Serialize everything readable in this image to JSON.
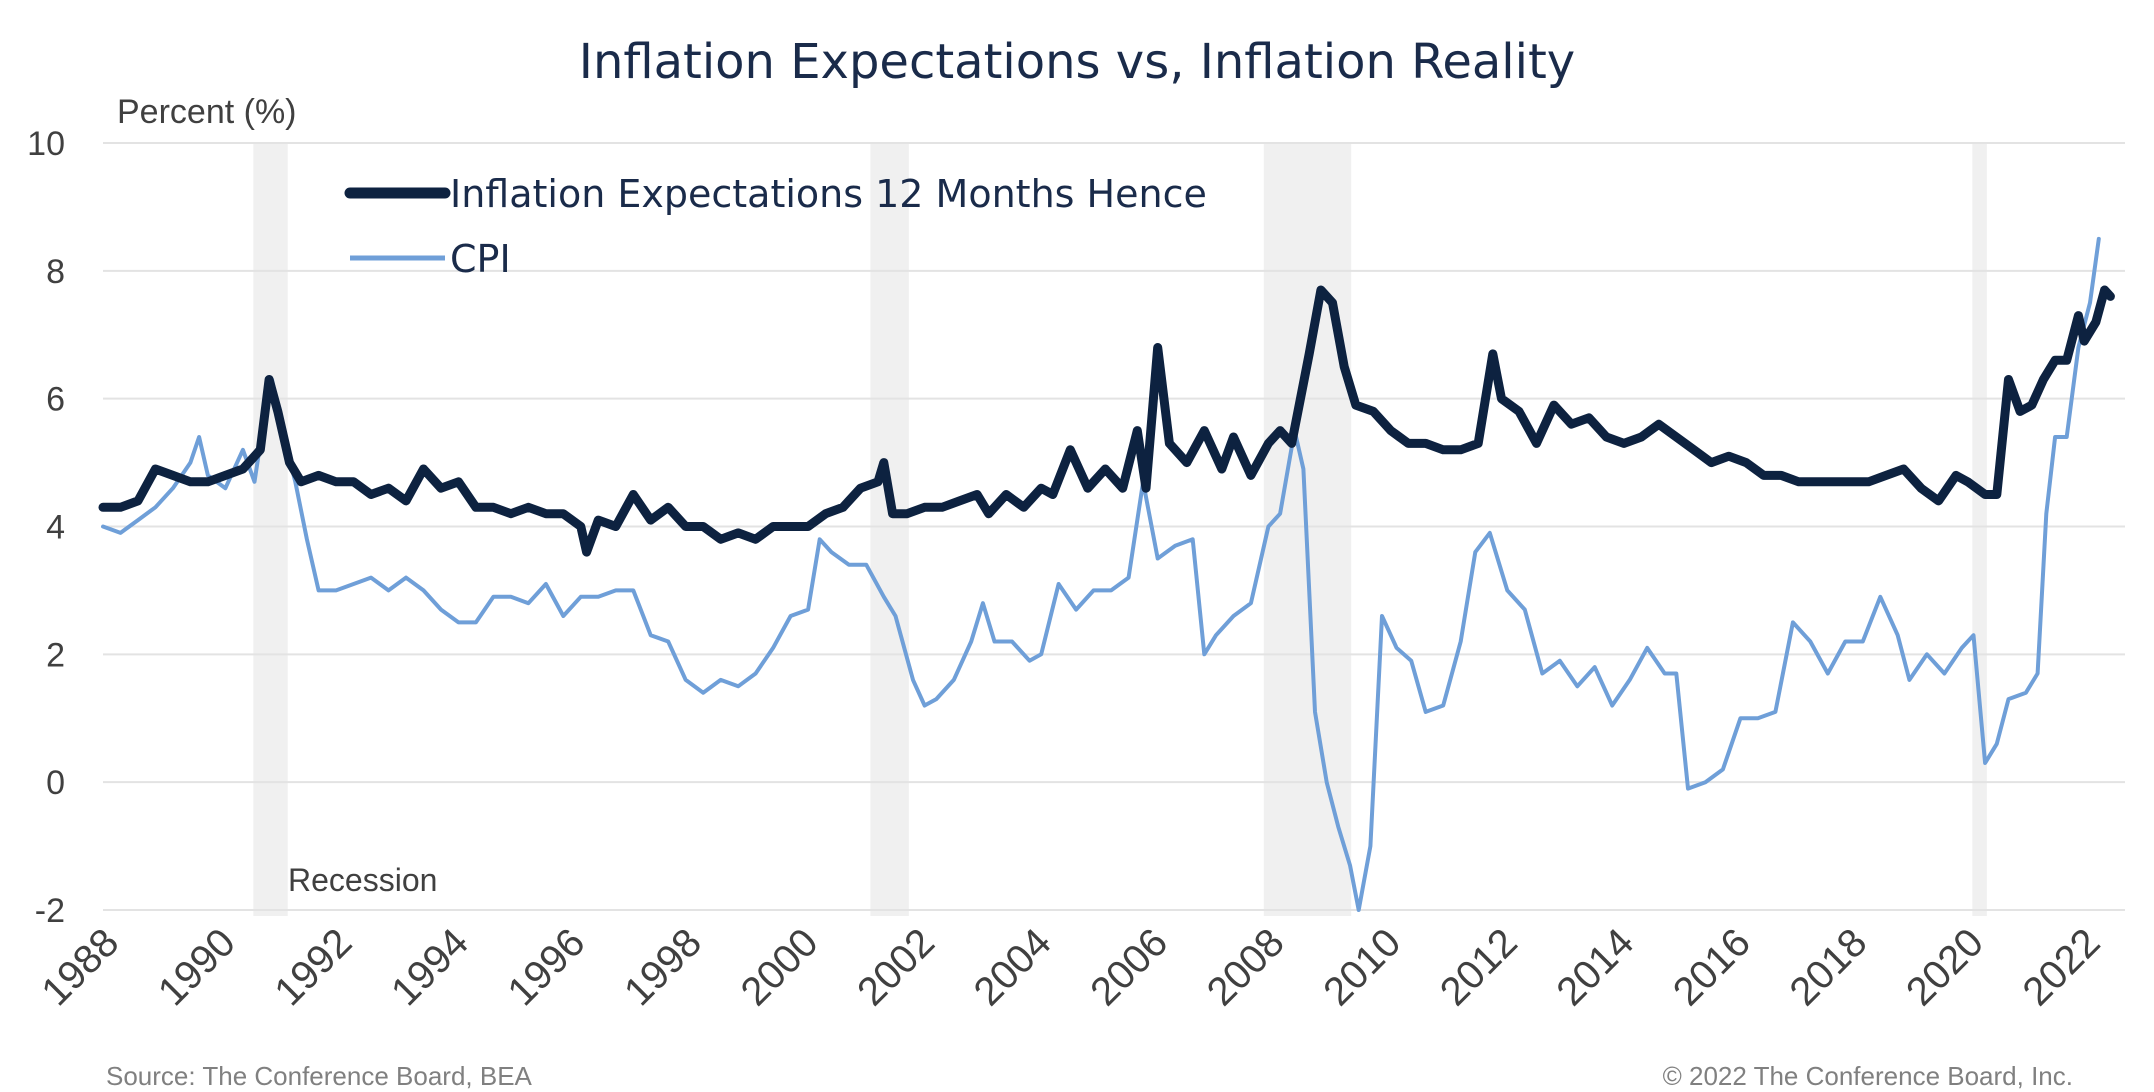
{
  "chart_data": {
    "type": "line",
    "title": "Inflation Expectations vs, Inflation Reality",
    "ylabel": "Percent (%)",
    "xlabel": "",
    "xlim": [
      1988,
      2022.7
    ],
    "ylim": [
      -2,
      10
    ],
    "yticks": [
      -2,
      0,
      2,
      4,
      6,
      8,
      10
    ],
    "xticks": [
      "1988",
      "1990",
      "1992",
      "1994",
      "1996",
      "1998",
      "2000",
      "2002",
      "2004",
      "2006",
      "2008",
      "2010",
      "2012",
      "2014",
      "2016",
      "2018",
      "2020",
      "2022"
    ],
    "grid": true,
    "legend_position": "top-left",
    "recession_label": "Recession",
    "recessions": [
      [
        1990.58,
        1991.17
      ],
      [
        2001.17,
        2001.83
      ],
      [
        2007.92,
        2009.42
      ],
      [
        2020.08,
        2020.33
      ]
    ],
    "series": [
      {
        "name": "Inflation Expectations 12 Months Hence",
        "color": "#0d2240",
        "points": [
          [
            1988.0,
            4.3
          ],
          [
            1988.3,
            4.3
          ],
          [
            1988.6,
            4.4
          ],
          [
            1988.9,
            4.9
          ],
          [
            1989.2,
            4.8
          ],
          [
            1989.5,
            4.7
          ],
          [
            1989.8,
            4.7
          ],
          [
            1990.1,
            4.8
          ],
          [
            1990.4,
            4.9
          ],
          [
            1990.7,
            5.2
          ],
          [
            1990.85,
            6.3
          ],
          [
            1991.0,
            5.8
          ],
          [
            1991.2,
            5.0
          ],
          [
            1991.4,
            4.7
          ],
          [
            1991.7,
            4.8
          ],
          [
            1992.0,
            4.7
          ],
          [
            1992.3,
            4.7
          ],
          [
            1992.6,
            4.5
          ],
          [
            1992.9,
            4.6
          ],
          [
            1993.2,
            4.4
          ],
          [
            1993.5,
            4.9
          ],
          [
            1993.8,
            4.6
          ],
          [
            1994.1,
            4.7
          ],
          [
            1994.4,
            4.3
          ],
          [
            1994.7,
            4.3
          ],
          [
            1995.0,
            4.2
          ],
          [
            1995.3,
            4.3
          ],
          [
            1995.6,
            4.2
          ],
          [
            1995.9,
            4.2
          ],
          [
            1996.2,
            4.0
          ],
          [
            1996.3,
            3.6
          ],
          [
            1996.5,
            4.1
          ],
          [
            1996.8,
            4.0
          ],
          [
            1997.1,
            4.5
          ],
          [
            1997.4,
            4.1
          ],
          [
            1997.7,
            4.3
          ],
          [
            1998.0,
            4.0
          ],
          [
            1998.3,
            4.0
          ],
          [
            1998.6,
            3.8
          ],
          [
            1998.9,
            3.9
          ],
          [
            1999.2,
            3.8
          ],
          [
            1999.5,
            4.0
          ],
          [
            1999.8,
            4.0
          ],
          [
            2000.1,
            4.0
          ],
          [
            2000.4,
            4.2
          ],
          [
            2000.7,
            4.3
          ],
          [
            2001.0,
            4.6
          ],
          [
            2001.3,
            4.7
          ],
          [
            2001.4,
            5.0
          ],
          [
            2001.55,
            4.2
          ],
          [
            2001.8,
            4.2
          ],
          [
            2002.1,
            4.3
          ],
          [
            2002.4,
            4.3
          ],
          [
            2002.7,
            4.4
          ],
          [
            2003.0,
            4.5
          ],
          [
            2003.2,
            4.2
          ],
          [
            2003.5,
            4.5
          ],
          [
            2003.8,
            4.3
          ],
          [
            2004.1,
            4.6
          ],
          [
            2004.3,
            4.5
          ],
          [
            2004.6,
            5.2
          ],
          [
            2004.9,
            4.6
          ],
          [
            2005.2,
            4.9
          ],
          [
            2005.5,
            4.6
          ],
          [
            2005.75,
            5.5
          ],
          [
            2005.9,
            4.6
          ],
          [
            2006.1,
            6.8
          ],
          [
            2006.3,
            5.3
          ],
          [
            2006.6,
            5.0
          ],
          [
            2006.9,
            5.5
          ],
          [
            2007.2,
            4.9
          ],
          [
            2007.4,
            5.4
          ],
          [
            2007.7,
            4.8
          ],
          [
            2008.0,
            5.3
          ],
          [
            2008.2,
            5.5
          ],
          [
            2008.4,
            5.3
          ],
          [
            2008.7,
            6.7
          ],
          [
            2008.9,
            7.7
          ],
          [
            2009.1,
            7.5
          ],
          [
            2009.3,
            6.5
          ],
          [
            2009.5,
            5.9
          ],
          [
            2009.8,
            5.8
          ],
          [
            2010.1,
            5.5
          ],
          [
            2010.4,
            5.3
          ],
          [
            2010.7,
            5.3
          ],
          [
            2011.0,
            5.2
          ],
          [
            2011.3,
            5.2
          ],
          [
            2011.6,
            5.3
          ],
          [
            2011.85,
            6.7
          ],
          [
            2012.0,
            6.0
          ],
          [
            2012.3,
            5.8
          ],
          [
            2012.6,
            5.3
          ],
          [
            2012.9,
            5.9
          ],
          [
            2013.2,
            5.6
          ],
          [
            2013.5,
            5.7
          ],
          [
            2013.8,
            5.4
          ],
          [
            2014.1,
            5.3
          ],
          [
            2014.4,
            5.4
          ],
          [
            2014.7,
            5.6
          ],
          [
            2015.0,
            5.4
          ],
          [
            2015.3,
            5.2
          ],
          [
            2015.6,
            5.0
          ],
          [
            2015.9,
            5.1
          ],
          [
            2016.2,
            5.0
          ],
          [
            2016.5,
            4.8
          ],
          [
            2016.8,
            4.8
          ],
          [
            2017.1,
            4.7
          ],
          [
            2017.4,
            4.7
          ],
          [
            2017.7,
            4.7
          ],
          [
            2018.0,
            4.7
          ],
          [
            2018.3,
            4.7
          ],
          [
            2018.6,
            4.8
          ],
          [
            2018.9,
            4.9
          ],
          [
            2019.2,
            4.6
          ],
          [
            2019.5,
            4.4
          ],
          [
            2019.8,
            4.8
          ],
          [
            2020.0,
            4.7
          ],
          [
            2020.3,
            4.5
          ],
          [
            2020.5,
            4.5
          ],
          [
            2020.7,
            6.3
          ],
          [
            2020.9,
            5.8
          ],
          [
            2021.1,
            5.9
          ],
          [
            2021.3,
            6.3
          ],
          [
            2021.5,
            6.6
          ],
          [
            2021.7,
            6.6
          ],
          [
            2021.9,
            7.3
          ],
          [
            2022.0,
            6.9
          ],
          [
            2022.2,
            7.2
          ],
          [
            2022.35,
            7.7
          ],
          [
            2022.45,
            7.6
          ]
        ]
      },
      {
        "name": "CPI",
        "color": "#6f9fd8",
        "points": [
          [
            1988.0,
            4.0
          ],
          [
            1988.3,
            3.9
          ],
          [
            1988.6,
            4.1
          ],
          [
            1988.9,
            4.3
          ],
          [
            1989.2,
            4.6
          ],
          [
            1989.5,
            5.0
          ],
          [
            1989.65,
            5.4
          ],
          [
            1989.8,
            4.8
          ],
          [
            1990.1,
            4.6
          ],
          [
            1990.4,
            5.2
          ],
          [
            1990.6,
            4.7
          ],
          [
            1990.75,
            5.6
          ],
          [
            1990.9,
            6.3
          ],
          [
            1991.1,
            5.4
          ],
          [
            1991.3,
            4.7
          ],
          [
            1991.5,
            3.8
          ],
          [
            1991.7,
            3.0
          ],
          [
            1992.0,
            3.0
          ],
          [
            1992.3,
            3.1
          ],
          [
            1992.6,
            3.2
          ],
          [
            1992.9,
            3.0
          ],
          [
            1993.2,
            3.2
          ],
          [
            1993.5,
            3.0
          ],
          [
            1993.8,
            2.7
          ],
          [
            1994.1,
            2.5
          ],
          [
            1994.4,
            2.5
          ],
          [
            1994.7,
            2.9
          ],
          [
            1995.0,
            2.9
          ],
          [
            1995.3,
            2.8
          ],
          [
            1995.6,
            3.1
          ],
          [
            1995.9,
            2.6
          ],
          [
            1996.2,
            2.9
          ],
          [
            1996.5,
            2.9
          ],
          [
            1996.8,
            3.0
          ],
          [
            1997.1,
            3.0
          ],
          [
            1997.4,
            2.3
          ],
          [
            1997.7,
            2.2
          ],
          [
            1998.0,
            1.6
          ],
          [
            1998.3,
            1.4
          ],
          [
            1998.6,
            1.6
          ],
          [
            1998.9,
            1.5
          ],
          [
            1999.2,
            1.7
          ],
          [
            1999.5,
            2.1
          ],
          [
            1999.8,
            2.6
          ],
          [
            2000.1,
            2.7
          ],
          [
            2000.3,
            3.8
          ],
          [
            2000.5,
            3.6
          ],
          [
            2000.8,
            3.4
          ],
          [
            2001.1,
            3.4
          ],
          [
            2001.4,
            2.9
          ],
          [
            2001.6,
            2.6
          ],
          [
            2001.9,
            1.6
          ],
          [
            2002.1,
            1.2
          ],
          [
            2002.3,
            1.3
          ],
          [
            2002.6,
            1.6
          ],
          [
            2002.9,
            2.2
          ],
          [
            2003.1,
            2.8
          ],
          [
            2003.3,
            2.2
          ],
          [
            2003.6,
            2.2
          ],
          [
            2003.9,
            1.9
          ],
          [
            2004.1,
            2.0
          ],
          [
            2004.4,
            3.1
          ],
          [
            2004.7,
            2.7
          ],
          [
            2005.0,
            3.0
          ],
          [
            2005.3,
            3.0
          ],
          [
            2005.6,
            3.2
          ],
          [
            2005.85,
            4.7
          ],
          [
            2006.1,
            3.5
          ],
          [
            2006.4,
            3.7
          ],
          [
            2006.7,
            3.8
          ],
          [
            2006.9,
            2.0
          ],
          [
            2007.1,
            2.3
          ],
          [
            2007.4,
            2.6
          ],
          [
            2007.7,
            2.8
          ],
          [
            2008.0,
            4.0
          ],
          [
            2008.2,
            4.2
          ],
          [
            2008.45,
            5.5
          ],
          [
            2008.6,
            4.9
          ],
          [
            2008.8,
            1.1
          ],
          [
            2009.0,
            0.0
          ],
          [
            2009.2,
            -0.7
          ],
          [
            2009.4,
            -1.3
          ],
          [
            2009.55,
            -2.0
          ],
          [
            2009.75,
            -1.0
          ],
          [
            2009.95,
            2.6
          ],
          [
            2010.2,
            2.1
          ],
          [
            2010.45,
            1.9
          ],
          [
            2010.7,
            1.1
          ],
          [
            2011.0,
            1.2
          ],
          [
            2011.3,
            2.2
          ],
          [
            2011.55,
            3.6
          ],
          [
            2011.8,
            3.9
          ],
          [
            2012.1,
            3.0
          ],
          [
            2012.4,
            2.7
          ],
          [
            2012.7,
            1.7
          ],
          [
            2013.0,
            1.9
          ],
          [
            2013.3,
            1.5
          ],
          [
            2013.6,
            1.8
          ],
          [
            2013.9,
            1.2
          ],
          [
            2014.2,
            1.6
          ],
          [
            2014.5,
            2.1
          ],
          [
            2014.8,
            1.7
          ],
          [
            2015.0,
            1.7
          ],
          [
            2015.2,
            -0.1
          ],
          [
            2015.5,
            0.0
          ],
          [
            2015.8,
            0.2
          ],
          [
            2016.1,
            1.0
          ],
          [
            2016.4,
            1.0
          ],
          [
            2016.7,
            1.1
          ],
          [
            2017.0,
            2.5
          ],
          [
            2017.3,
            2.2
          ],
          [
            2017.6,
            1.7
          ],
          [
            2017.9,
            2.2
          ],
          [
            2018.2,
            2.2
          ],
          [
            2018.5,
            2.9
          ],
          [
            2018.8,
            2.3
          ],
          [
            2019.0,
            1.6
          ],
          [
            2019.3,
            2.0
          ],
          [
            2019.6,
            1.7
          ],
          [
            2019.9,
            2.1
          ],
          [
            2020.1,
            2.3
          ],
          [
            2020.3,
            0.3
          ],
          [
            2020.5,
            0.6
          ],
          [
            2020.7,
            1.3
          ],
          [
            2021.0,
            1.4
          ],
          [
            2021.2,
            1.7
          ],
          [
            2021.35,
            4.2
          ],
          [
            2021.5,
            5.4
          ],
          [
            2021.7,
            5.4
          ],
          [
            2021.9,
            6.8
          ],
          [
            2022.1,
            7.5
          ],
          [
            2022.25,
            8.5
          ]
        ]
      }
    ]
  },
  "footer": {
    "source": "Source: The Conference Board, BEA",
    "copyright": "© 2022 The Conference Board, Inc."
  }
}
